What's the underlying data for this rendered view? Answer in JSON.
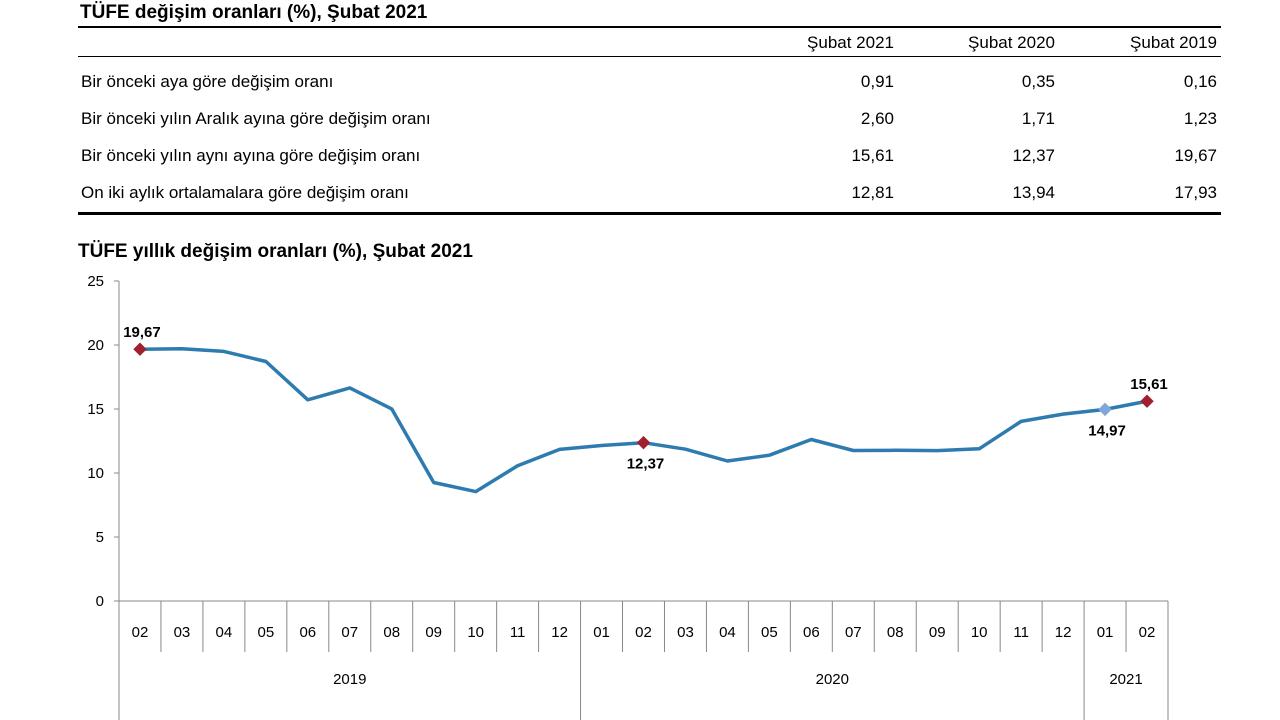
{
  "table": {
    "title": "TÜFE değişim oranları (%), Şubat 2021",
    "columns": [
      "Şubat 2021",
      "Şubat 2020",
      "Şubat 2019"
    ],
    "rows": [
      {
        "label": "Bir önceki aya göre değişim oranı",
        "values": [
          "0,91",
          "0,35",
          "0,16"
        ]
      },
      {
        "label": "Bir önceki yılın Aralık ayına göre değişim oranı",
        "values": [
          "2,60",
          "1,71",
          "1,23"
        ]
      },
      {
        "label": "Bir önceki yılın aynı ayına göre değişim oranı",
        "values": [
          "15,61",
          "12,37",
          "19,67"
        ]
      },
      {
        "label": "On iki aylık ortalamalara göre değişim oranı",
        "values": [
          "12,81",
          "13,94",
          "17,93"
        ]
      }
    ]
  },
  "chart_data": {
    "type": "line",
    "title": "TÜFE yıllık değişim oranları (%), Şubat 2021",
    "xlabel": "",
    "ylabel": "",
    "ylim": [
      0,
      25
    ],
    "yticks": [
      "0",
      "5",
      "10",
      "15",
      "20",
      "25"
    ],
    "categories": [
      "02",
      "03",
      "04",
      "05",
      "06",
      "07",
      "08",
      "09",
      "10",
      "11",
      "12",
      "01",
      "02",
      "03",
      "04",
      "05",
      "06",
      "07",
      "08",
      "09",
      "10",
      "11",
      "12",
      "01",
      "02"
    ],
    "year_groups": [
      {
        "label": "2019",
        "start": 0,
        "end": 10
      },
      {
        "label": "2020",
        "start": 11,
        "end": 22
      },
      {
        "label": "2021",
        "start": 23,
        "end": 24
      }
    ],
    "series": [
      {
        "values": [
          19.67,
          19.71,
          19.5,
          18.71,
          15.72,
          16.65,
          15.01,
          9.26,
          8.55,
          10.56,
          11.84,
          12.15,
          12.37,
          11.86,
          10.94,
          11.39,
          12.62,
          11.76,
          11.77,
          11.75,
          11.89,
          14.03,
          14.6,
          14.97,
          15.61
        ],
        "color": "#2e7bb0"
      }
    ],
    "annotations": [
      {
        "index": 0,
        "text": "19,67",
        "position": "above",
        "marker": "diamond",
        "color": "#a02030"
      },
      {
        "index": 12,
        "text": "12,37",
        "position": "below",
        "marker": "diamond",
        "color": "#a02030"
      },
      {
        "index": 23,
        "text": "14,97",
        "position": "below",
        "marker": "diamond",
        "color": "#7fa6d6"
      },
      {
        "index": 24,
        "text": "15,61",
        "position": "above",
        "marker": "diamond",
        "color": "#a02030"
      }
    ],
    "grid": false,
    "legend": "none"
  }
}
